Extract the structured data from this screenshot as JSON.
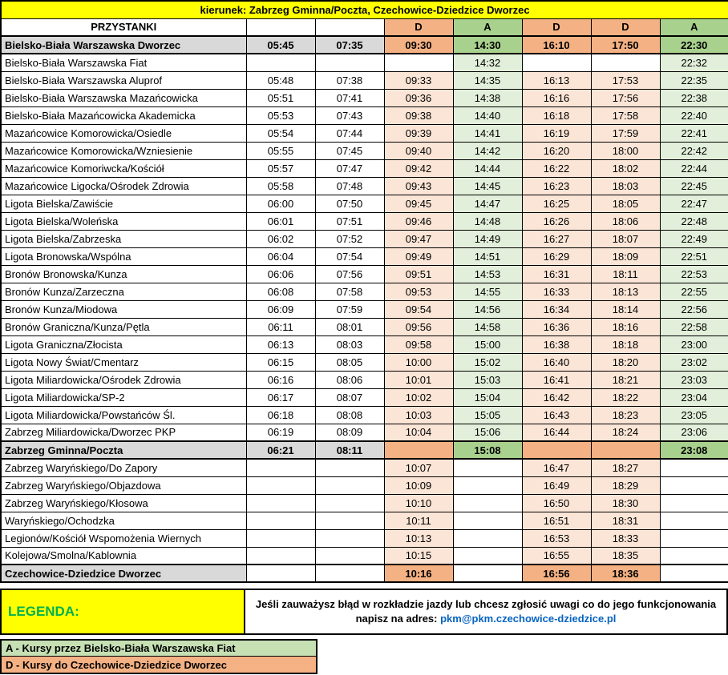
{
  "title": "kierunek: Zabrzeg Gminna/Poczta, Czechowice-Dziedzice Dworzec",
  "table": {
    "stops_header": "PRZYSTANKI",
    "column_types": [
      "",
      "",
      "D",
      "A",
      "D",
      "D",
      "A"
    ],
    "rows": [
      {
        "stop": "Bielsko-Biała Warszawska Dworzec",
        "bold": true,
        "times": [
          "05:45",
          "07:35",
          "09:30",
          "14:30",
          "16:10",
          "17:50",
          "22:30"
        ]
      },
      {
        "stop": "Bielsko-Biała Warszawska Fiat",
        "bold": false,
        "times": [
          "",
          "",
          "",
          "14:32",
          "",
          "",
          "22:32"
        ]
      },
      {
        "stop": "Bielsko-Biała Warszawska Aluprof",
        "bold": false,
        "times": [
          "05:48",
          "07:38",
          "09:33",
          "14:35",
          "16:13",
          "17:53",
          "22:35"
        ]
      },
      {
        "stop": "Bielsko-Biała Warszawska Mazańcowicka",
        "bold": false,
        "times": [
          "05:51",
          "07:41",
          "09:36",
          "14:38",
          "16:16",
          "17:56",
          "22:38"
        ]
      },
      {
        "stop": "Bielsko-Biała Mazańcowicka Akademicka",
        "bold": false,
        "times": [
          "05:53",
          "07:43",
          "09:38",
          "14:40",
          "16:18",
          "17:58",
          "22:40"
        ]
      },
      {
        "stop": "Mazańcowice Komorowicka/Osiedle",
        "bold": false,
        "times": [
          "05:54",
          "07:44",
          "09:39",
          "14:41",
          "16:19",
          "17:59",
          "22:41"
        ]
      },
      {
        "stop": "Mazańcowice Komorowicka/Wzniesienie",
        "bold": false,
        "times": [
          "05:55",
          "07:45",
          "09:40",
          "14:42",
          "16:20",
          "18:00",
          "22:42"
        ]
      },
      {
        "stop": "Mazańcowice Komoriwcka/Kościół",
        "bold": false,
        "times": [
          "05:57",
          "07:47",
          "09:42",
          "14:44",
          "16:22",
          "18:02",
          "22:44"
        ]
      },
      {
        "stop": "Mazańcowice Ligocka/Ośrodek Zdrowia",
        "bold": false,
        "times": [
          "05:58",
          "07:48",
          "09:43",
          "14:45",
          "16:23",
          "18:03",
          "22:45"
        ]
      },
      {
        "stop": "Ligota Bielska/Zawiście",
        "bold": false,
        "times": [
          "06:00",
          "07:50",
          "09:45",
          "14:47",
          "16:25",
          "18:05",
          "22:47"
        ]
      },
      {
        "stop": "Ligota Bielska/Woleńska",
        "bold": false,
        "times": [
          "06:01",
          "07:51",
          "09:46",
          "14:48",
          "16:26",
          "18:06",
          "22:48"
        ]
      },
      {
        "stop": "Ligota Bielska/Zabrzeska",
        "bold": false,
        "times": [
          "06:02",
          "07:52",
          "09:47",
          "14:49",
          "16:27",
          "18:07",
          "22:49"
        ]
      },
      {
        "stop": "Ligota Bronowska/Wspólna",
        "bold": false,
        "times": [
          "06:04",
          "07:54",
          "09:49",
          "14:51",
          "16:29",
          "18:09",
          "22:51"
        ]
      },
      {
        "stop": "Bronów Bronowska/Kunza",
        "bold": false,
        "times": [
          "06:06",
          "07:56",
          "09:51",
          "14:53",
          "16:31",
          "18:11",
          "22:53"
        ]
      },
      {
        "stop": "Bronów Kunza/Zarzeczna",
        "bold": false,
        "times": [
          "06:08",
          "07:58",
          "09:53",
          "14:55",
          "16:33",
          "18:13",
          "22:55"
        ]
      },
      {
        "stop": "Bronów Kunza/Miodowa",
        "bold": false,
        "times": [
          "06:09",
          "07:59",
          "09:54",
          "14:56",
          "16:34",
          "18:14",
          "22:56"
        ]
      },
      {
        "stop": "Bronów Graniczna/Kunza/Pętla",
        "bold": false,
        "times": [
          "06:11",
          "08:01",
          "09:56",
          "14:58",
          "16:36",
          "18:16",
          "22:58"
        ]
      },
      {
        "stop": "Ligota Graniczna/Złocista",
        "bold": false,
        "times": [
          "06:13",
          "08:03",
          "09:58",
          "15:00",
          "16:38",
          "18:18",
          "23:00"
        ]
      },
      {
        "stop": "Ligota Nowy Świat/Cmentarz",
        "bold": false,
        "times": [
          "06:15",
          "08:05",
          "10:00",
          "15:02",
          "16:40",
          "18:20",
          "23:02"
        ]
      },
      {
        "stop": "Ligota Miliardowicka/Ośrodek Zdrowia",
        "bold": false,
        "times": [
          "06:16",
          "08:06",
          "10:01",
          "15:03",
          "16:41",
          "18:21",
          "23:03"
        ]
      },
      {
        "stop": "Ligota Miliardowicka/SP-2",
        "bold": false,
        "times": [
          "06:17",
          "08:07",
          "10:02",
          "15:04",
          "16:42",
          "18:22",
          "23:04"
        ]
      },
      {
        "stop": "Ligota Miliardowicka/Powstańców Śl.",
        "bold": false,
        "times": [
          "06:18",
          "08:08",
          "10:03",
          "15:05",
          "16:43",
          "18:23",
          "23:05"
        ]
      },
      {
        "stop": "Zabrzeg Miliardowicka/Dworzec PKP",
        "bold": false,
        "times": [
          "06:19",
          "08:09",
          "10:04",
          "15:06",
          "16:44",
          "18:24",
          "23:06"
        ]
      },
      {
        "stop": "Zabrzeg Gminna/Poczta",
        "bold": true,
        "times": [
          "06:21",
          "08:11",
          "",
          "15:08",
          "",
          "",
          "23:08"
        ]
      },
      {
        "stop": "Zabrzeg Waryńskiego/Do Zapory",
        "bold": false,
        "times": [
          "",
          "",
          "10:07",
          "",
          "16:47",
          "18:27",
          ""
        ]
      },
      {
        "stop": "Zabrzeg Waryńskiego/Objazdowa",
        "bold": false,
        "times": [
          "",
          "",
          "10:09",
          "",
          "16:49",
          "18:29",
          ""
        ]
      },
      {
        "stop": "Zabrzeg Waryńskiego/Kłosowa",
        "bold": false,
        "times": [
          "",
          "",
          "10:10",
          "",
          "16:50",
          "18:30",
          ""
        ]
      },
      {
        "stop": "Waryńskiego/Ochodzka",
        "bold": false,
        "times": [
          "",
          "",
          "10:11",
          "",
          "16:51",
          "18:31",
          ""
        ]
      },
      {
        "stop": "Legionów/Kościół Wspomożenia Wiernych",
        "bold": false,
        "times": [
          "",
          "",
          "10:13",
          "",
          "16:53",
          "18:33",
          ""
        ]
      },
      {
        "stop": "Kolejowa/Smolna/Kablownia",
        "bold": false,
        "times": [
          "",
          "",
          "10:15",
          "",
          "16:55",
          "18:35",
          ""
        ]
      },
      {
        "stop": "Czechowice-Dziedzice Dworzec",
        "bold": true,
        "times": [
          "",
          "",
          "10:16",
          "",
          "16:56",
          "18:36",
          ""
        ]
      }
    ]
  },
  "legend": {
    "label": "LEGENDA:",
    "info_line1": "Jeśli zauważysz błąd w rozkładzie jazdy lub chcesz zgłosić uwagi co do jego funkcjonowania",
    "info_line2_prefix": "napisz na adres: ",
    "email": "pkm@pkm.czechowice-dziedzice.pl",
    "items": [
      {
        "type": "A",
        "text": "A - Kursy przez Bielsko-Biała Warszawska Fiat"
      },
      {
        "type": "D",
        "text": "D - Kursy do Czechowice-Dziedzice Dworzec"
      }
    ]
  },
  "colors": {
    "title_bg": "#FFFF00",
    "d_header": "#F4B183",
    "a_header": "#A9D18E",
    "d_cell_light": "#FBE5D6",
    "a_cell_light": "#E2EFDA",
    "bold_row_gray": "#D9D9D9",
    "legend_a_bg": "#C6E0B4",
    "legend_d_bg": "#F4B183",
    "legenda_text": "#00B050",
    "email_text": "#0563C1"
  }
}
